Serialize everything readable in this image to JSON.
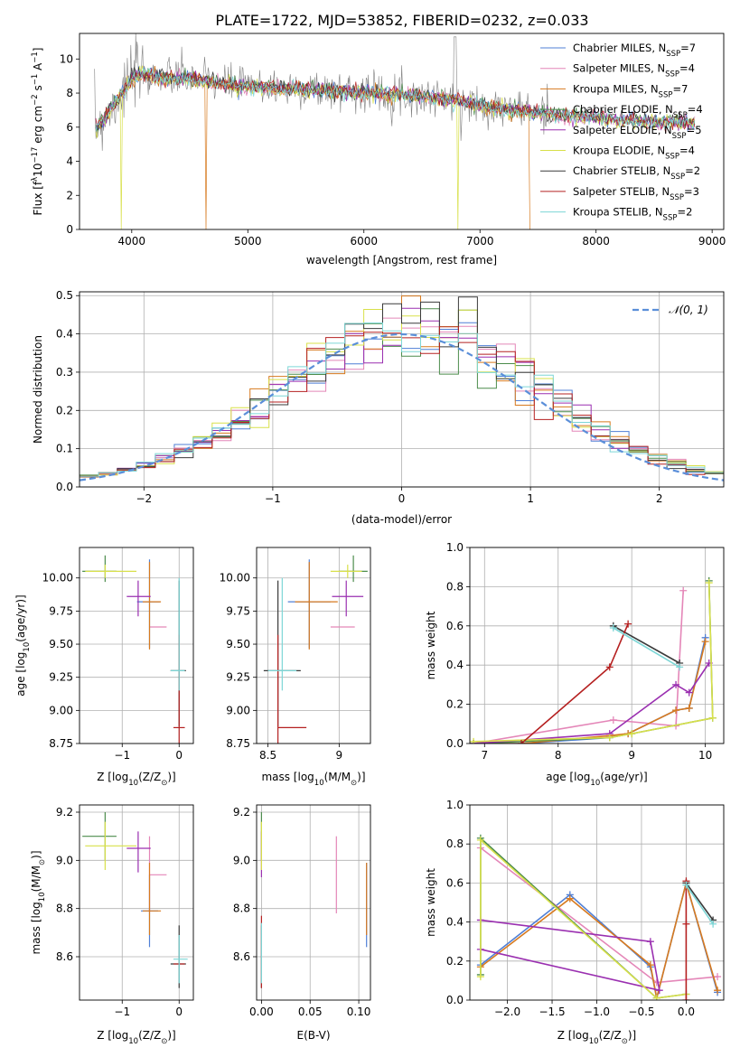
{
  "figure": {
    "suptitle": "PLATE=1722, MJD=53852, FIBERID=0232, z=0.033"
  },
  "colors": {
    "models": [
      "#4f7fd6",
      "#e486b8",
      "#d77a1f",
      "#4c8c4c",
      "#9a2fb0",
      "#d8e04a",
      "#3a3a3a",
      "#b52020",
      "#7dd6d6"
    ],
    "gaussian": "#5b8fd9",
    "observed": "#808080"
  },
  "legend_models": [
    {
      "label": "Chabrier MILES, N",
      "sub": "SSP",
      "eq": "=7"
    },
    {
      "label": "Salpeter MILES, N",
      "sub": "SSP",
      "eq": "=4"
    },
    {
      "label": "Kroupa MILES, N",
      "sub": "SSP",
      "eq": "=7"
    },
    {
      "label": "Chabrier ELODIE, N",
      "sub": "SSP",
      "eq": "=4"
    },
    {
      "label": "Salpeter ELODIE, N",
      "sub": "SSP",
      "eq": "=5"
    },
    {
      "label": "Kroupa ELODIE, N",
      "sub": "SSP",
      "eq": "=4"
    },
    {
      "label": "Chabrier STELIB, N",
      "sub": "SSP",
      "eq": "=2"
    },
    {
      "label": "Salpeter STELIB, N",
      "sub": "SSP",
      "eq": "=3"
    },
    {
      "label": "Kroupa STELIB, N",
      "sub": "SSP",
      "eq": "=2"
    }
  ],
  "chart_data": [
    {
      "type": "line",
      "panel": "spectrum",
      "xlabel": "wavelength [Angstrom, rest frame]",
      "ylabel_parts": [
        "Flux [f",
        "λ",
        "10",
        "−17",
        " erg cm",
        "−2",
        " s",
        "−1",
        " A",
        "−1",
        "]"
      ],
      "xlim": [
        3550,
        9100
      ],
      "ylim": [
        0,
        11.5
      ],
      "xticks": [
        4000,
        5000,
        6000,
        7000,
        8000,
        9000
      ],
      "yticks": [
        0,
        2,
        4,
        6,
        8,
        10
      ],
      "grid": false,
      "legend": "top-right",
      "continuum": {
        "x": [
          3700,
          3800,
          3900,
          4000,
          4100,
          4300,
          4500,
          4700,
          5000,
          5300,
          5600,
          6000,
          6400,
          6800,
          7200,
          7600,
          8000,
          8400,
          8800
        ],
        "y": [
          6.0,
          6.9,
          7.9,
          8.9,
          9.2,
          8.9,
          8.9,
          8.7,
          8.4,
          8.3,
          8.2,
          8.1,
          7.9,
          7.6,
          7.1,
          6.8,
          6.6,
          6.4,
          6.3
        ]
      }
    },
    {
      "type": "histogram",
      "panel": "residuals",
      "xlabel": "(data-model)/error",
      "ylabel": "Normed distribution",
      "xlim": [
        -2.5,
        2.5
      ],
      "ylim": [
        0,
        0.51
      ],
      "xticks": [
        -2,
        -1,
        0,
        1,
        2
      ],
      "yticks": [
        0.0,
        0.1,
        0.2,
        0.3,
        0.4,
        0.5
      ],
      "grid": true,
      "legend": "top-right",
      "gaussian_label": "𝒩(0, 1)"
    },
    {
      "type": "scatter",
      "panel": "age-vs-metallicity",
      "xlabel_parts": [
        "Z [log",
        "10",
        "(Z/Z",
        "⊙",
        ")]"
      ],
      "ylabel_parts": [
        "age  [log",
        "10",
        "(age/yr)]"
      ],
      "xlim": [
        -1.75,
        0.25
      ],
      "ylim": [
        8.75,
        10.23
      ],
      "xticks": [
        -1,
        0
      ],
      "yticks": [
        8.75,
        9.0,
        9.25,
        9.5,
        9.75,
        10.0
      ],
      "grid": true,
      "points": [
        {
          "m": 0,
          "x": -0.52,
          "y": 9.82,
          "dx": [
            0.22,
            0.18
          ],
          "dy": [
            0.35,
            0.32
          ]
        },
        {
          "m": 1,
          "x": -0.52,
          "y": 9.63,
          "dx": [
            0.0,
            0.3
          ],
          "dy": [
            0.0,
            0.0
          ]
        },
        {
          "m": 2,
          "x": -0.52,
          "y": 9.82,
          "dx": [
            0.12,
            0.2
          ],
          "dy": [
            0.36,
            0.3
          ]
        },
        {
          "m": 3,
          "x": -1.3,
          "y": 10.05,
          "dx": [
            0.4,
            0.2
          ],
          "dy": [
            0.08,
            0.12
          ]
        },
        {
          "m": 4,
          "x": -0.72,
          "y": 9.86,
          "dx": [
            0.2,
            0.22
          ],
          "dy": [
            0.15,
            0.12
          ]
        },
        {
          "m": 5,
          "x": -1.3,
          "y": 10.05,
          "dx": [
            0.35,
            0.55
          ],
          "dy": [
            0.05,
            0.05
          ]
        },
        {
          "m": 6,
          "x": 0.0,
          "y": 9.3,
          "dx": [
            0.15,
            0.12
          ],
          "dy": [
            0.42,
            0.68
          ]
        },
        {
          "m": 7,
          "x": 0.0,
          "y": 8.87,
          "dx": [
            0.1,
            0.1
          ],
          "dy": [
            0.12,
            0.7
          ]
        },
        {
          "m": 8,
          "x": 0.0,
          "y": 9.3,
          "dx": [
            0.15,
            0.1
          ],
          "dy": [
            0.15,
            0.7
          ]
        }
      ]
    },
    {
      "type": "scatter",
      "panel": "age-vs-mass",
      "xlabel_parts": [
        "mass [log",
        "10",
        "(M/M",
        "⊙",
        ")]"
      ],
      "ylabel_parts": [],
      "xlim": [
        8.42,
        9.22
      ],
      "ylim": [
        8.75,
        10.23
      ],
      "xticks": [
        8.5,
        9.0
      ],
      "yticks": [
        8.75,
        9.0,
        9.25,
        9.5,
        9.75,
        10.0
      ],
      "grid": true,
      "points": [
        {
          "m": 0,
          "x": 8.79,
          "y": 9.82,
          "dx": [
            0.15,
            0.15
          ],
          "dy": [
            0.35,
            0.32
          ]
        },
        {
          "m": 1,
          "x": 8.94,
          "y": 9.63,
          "dx": [
            0.0,
            0.17
          ],
          "dy": [
            0.0,
            0.0
          ]
        },
        {
          "m": 2,
          "x": 8.79,
          "y": 9.82,
          "dx": [
            0.1,
            0.2
          ],
          "dy": [
            0.36,
            0.3
          ]
        },
        {
          "m": 3,
          "x": 9.1,
          "y": 10.05,
          "dx": [
            0.1,
            0.1
          ],
          "dy": [
            0.08,
            0.12
          ]
        },
        {
          "m": 4,
          "x": 9.05,
          "y": 9.86,
          "dx": [
            0.1,
            0.12
          ],
          "dy": [
            0.15,
            0.12
          ]
        },
        {
          "m": 5,
          "x": 9.06,
          "y": 10.05,
          "dx": [
            0.12,
            0.1
          ],
          "dy": [
            0.05,
            0.05
          ]
        },
        {
          "m": 6,
          "x": 8.57,
          "y": 9.3,
          "dx": [
            0.1,
            0.16
          ],
          "dy": [
            0.42,
            0.68
          ]
        },
        {
          "m": 7,
          "x": 8.57,
          "y": 8.87,
          "dx": [
            0.0,
            0.2
          ],
          "dy": [
            0.12,
            0.7
          ]
        },
        {
          "m": 8,
          "x": 8.6,
          "y": 9.3,
          "dx": [
            0.1,
            0.1
          ],
          "dy": [
            0.15,
            0.7
          ]
        }
      ]
    },
    {
      "type": "line",
      "panel": "mass-weight-vs-age",
      "xlabel_parts": [
        "age  [log",
        "10",
        "(age/yr)]"
      ],
      "ylabel": "mass weight",
      "xlim": [
        6.8,
        10.25
      ],
      "ylim": [
        0,
        1.0
      ],
      "xticks": [
        7,
        8,
        9,
        10
      ],
      "yticks": [
        0.0,
        0.2,
        0.4,
        0.6,
        0.8,
        1.0
      ],
      "grid": true,
      "series": [
        {
          "m": 0,
          "x": [
            6.85,
            7.5,
            8.7,
            8.95,
            9.6,
            9.78,
            10.0
          ],
          "y": [
            0.0,
            0.0,
            0.03,
            0.05,
            0.17,
            0.18,
            0.54
          ]
        },
        {
          "m": 1,
          "x": [
            6.85,
            8.75,
            9.6,
            9.7
          ],
          "y": [
            0.0,
            0.12,
            0.09,
            0.78
          ]
        },
        {
          "m": 2,
          "x": [
            6.85,
            7.5,
            8.7,
            8.95,
            9.6,
            9.78,
            10.0
          ],
          "y": [
            0.0,
            0.0,
            0.04,
            0.05,
            0.17,
            0.18,
            0.52
          ]
        },
        {
          "m": 3,
          "x": [
            6.85,
            8.7,
            9.0,
            10.1,
            10.05
          ],
          "y": [
            0.0,
            0.03,
            0.05,
            0.13,
            0.83
          ]
        },
        {
          "m": 4,
          "x": [
            6.85,
            8.7,
            9.6,
            9.78,
            10.05
          ],
          "y": [
            0.0,
            0.05,
            0.3,
            0.26,
            0.41
          ]
        },
        {
          "m": 5,
          "x": [
            6.85,
            8.7,
            9.0,
            10.1,
            10.05
          ],
          "y": [
            0.01,
            0.03,
            0.05,
            0.13,
            0.82
          ]
        },
        {
          "m": 6,
          "x": [
            8.75,
            9.65
          ],
          "y": [
            0.6,
            0.41
          ]
        },
        {
          "m": 7,
          "x": [
            7.5,
            8.7,
            8.95
          ],
          "y": [
            0.0,
            0.39,
            0.61
          ]
        },
        {
          "m": 8,
          "x": [
            8.75,
            9.65
          ],
          "y": [
            0.59,
            0.39
          ]
        }
      ]
    },
    {
      "type": "scatter",
      "panel": "mass-vs-metallicity",
      "xlabel_parts": [
        "Z [log",
        "10",
        "(Z/Z",
        "⊙",
        ")]"
      ],
      "ylabel_parts": [
        "mass [log",
        "10",
        "(M/M",
        "⊙",
        ")]"
      ],
      "xlim": [
        -1.75,
        0.25
      ],
      "ylim": [
        8.42,
        9.23
      ],
      "xticks": [
        -1,
        0
      ],
      "yticks": [
        8.6,
        8.8,
        9.0,
        9.2
      ],
      "grid": true,
      "points": [
        {
          "m": 0,
          "x": -0.52,
          "y": 8.79,
          "dx": [
            0.15,
            0.15
          ],
          "dy": [
            0.15,
            0.15
          ]
        },
        {
          "m": 1,
          "x": -0.52,
          "y": 8.94,
          "dx": [
            0.0,
            0.3
          ],
          "dy": [
            0.16,
            0.16
          ]
        },
        {
          "m": 2,
          "x": -0.52,
          "y": 8.79,
          "dx": [
            0.12,
            0.2
          ],
          "dy": [
            0.1,
            0.2
          ]
        },
        {
          "m": 3,
          "x": -1.3,
          "y": 9.1,
          "dx": [
            0.4,
            0.2
          ],
          "dy": [
            0.1,
            0.1
          ]
        },
        {
          "m": 4,
          "x": -0.72,
          "y": 9.05,
          "dx": [
            0.2,
            0.22
          ],
          "dy": [
            0.1,
            0.07
          ]
        },
        {
          "m": 5,
          "x": -1.3,
          "y": 9.06,
          "dx": [
            0.35,
            0.55
          ],
          "dy": [
            0.1,
            0.1
          ]
        },
        {
          "m": 6,
          "x": 0.0,
          "y": 8.57,
          "dx": [
            0.15,
            0.12
          ],
          "dy": [
            0.1,
            0.16
          ]
        },
        {
          "m": 7,
          "x": 0.0,
          "y": 8.57,
          "dx": [
            0.1,
            0.1
          ],
          "dy": [
            0.0,
            0.0
          ]
        },
        {
          "m": 8,
          "x": 0.0,
          "y": 8.59,
          "dx": [
            0.1,
            0.15
          ],
          "dy": [
            0.1,
            0.1
          ]
        }
      ]
    },
    {
      "type": "scatter",
      "panel": "mass-vs-extinction",
      "xlabel": "E(B-V)",
      "ylabel_parts": [],
      "xlim": [
        -0.005,
        0.112
      ],
      "ylim": [
        8.42,
        9.23
      ],
      "xticks": [
        0.0,
        0.05,
        0.1
      ],
      "xticklabels": [
        "0.00",
        "0.05",
        "0.10"
      ],
      "yticks": [
        8.6,
        8.8,
        9.0,
        9.2
      ],
      "grid": true,
      "points": [
        {
          "m": 0,
          "x": 0.108,
          "y": 8.79,
          "dx": [
            0,
            0
          ],
          "dy": [
            0.15,
            0.2
          ]
        },
        {
          "m": 1,
          "x": 0.077,
          "y": 8.94,
          "dx": [
            0,
            0
          ],
          "dy": [
            0.16,
            0.16
          ]
        },
        {
          "m": 2,
          "x": 0.108,
          "y": 8.79,
          "dx": [
            0,
            0
          ],
          "dy": [
            0.1,
            0.2
          ]
        },
        {
          "m": 3,
          "x": 0.0,
          "y": 9.1,
          "dx": [
            0,
            0
          ],
          "dy": [
            0.1,
            0.1
          ]
        },
        {
          "m": 4,
          "x": 0.0,
          "y": 9.05,
          "dx": [
            0,
            0
          ],
          "dy": [
            0.12,
            0.07
          ]
        },
        {
          "m": 5,
          "x": 0.0,
          "y": 9.06,
          "dx": [
            0,
            0
          ],
          "dy": [
            0.1,
            0.1
          ]
        },
        {
          "m": 6,
          "x": 0.0,
          "y": 8.57,
          "dx": [
            0,
            0
          ],
          "dy": [
            0.1,
            0.16
          ]
        },
        {
          "m": 7,
          "x": 0.0,
          "y": 8.57,
          "dx": [
            0,
            0
          ],
          "dy": [
            0.1,
            0.2
          ]
        },
        {
          "m": 8,
          "x": 0.0,
          "y": 8.59,
          "dx": [
            0,
            0
          ],
          "dy": [
            0.1,
            0.15
          ]
        }
      ]
    },
    {
      "type": "line",
      "panel": "mass-weight-vs-metallicity",
      "xlabel_parts": [
        "Z [log",
        "10",
        "(Z/Z",
        "⊙",
        ")]"
      ],
      "ylabel": "mass weight",
      "xlim": [
        -2.42,
        0.42
      ],
      "ylim": [
        0,
        1.0
      ],
      "xticks": [
        -2.0,
        -1.5,
        -1.0,
        -0.5,
        0.0
      ],
      "xticklabels": [
        "−2.0",
        "−1.5",
        "−1.0",
        "−0.5",
        "0.0"
      ],
      "yticks": [
        0.0,
        0.2,
        0.4,
        0.6,
        0.8,
        1.0
      ],
      "grid": true,
      "series": [
        {
          "m": 0,
          "x": [
            -2.3,
            -1.3,
            -0.4,
            -0.33,
            0.0,
            0.35
          ],
          "y": [
            0.18,
            0.54,
            0.17,
            0.01,
            0.6,
            0.04
          ]
        },
        {
          "m": 1,
          "x": [
            -2.3,
            -0.33,
            0.35
          ],
          "y": [
            0.78,
            0.09,
            0.12
          ]
        },
        {
          "m": 2,
          "x": [
            -2.3,
            -1.3,
            -0.4,
            -0.33,
            0.0,
            0.35
          ],
          "y": [
            0.17,
            0.52,
            0.18,
            0.01,
            0.6,
            0.05
          ]
        },
        {
          "m": 3,
          "x": [
            -2.3,
            -2.3,
            -0.33,
            0.0
          ],
          "y": [
            0.13,
            0.83,
            0.01,
            0.03
          ]
        },
        {
          "m": 4,
          "x": [
            -2.3,
            -0.4,
            -0.3,
            -2.3
          ],
          "y": [
            0.41,
            0.3,
            0.05,
            0.26
          ]
        },
        {
          "m": 5,
          "x": [
            -2.3,
            -2.3,
            -0.33,
            0.0
          ],
          "y": [
            0.12,
            0.82,
            0.01,
            0.03
          ]
        },
        {
          "m": 6,
          "x": [
            0.0,
            0.3
          ],
          "y": [
            0.6,
            0.41
          ]
        },
        {
          "m": 7,
          "x": [
            0.0,
            0.0,
            0.0
          ],
          "y": [
            0.0,
            0.39,
            0.61
          ]
        },
        {
          "m": 8,
          "x": [
            0.0,
            0.3
          ],
          "y": [
            0.59,
            0.39
          ]
        }
      ]
    }
  ]
}
